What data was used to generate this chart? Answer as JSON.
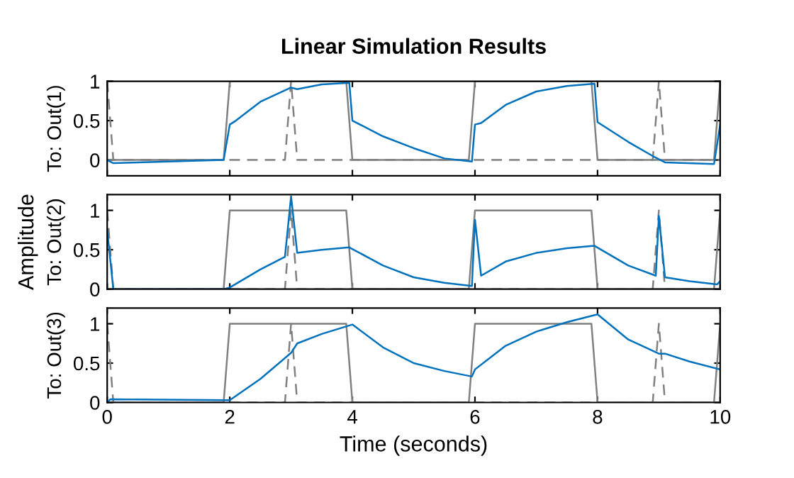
{
  "chart_data": [
    {
      "type": "line",
      "title": "Linear Simulation Results",
      "ylabel": "To: Out(1)",
      "xlim": [
        0,
        10
      ],
      "ylim": [
        -0.2,
        1
      ],
      "xticks": [
        0,
        2,
        4,
        6,
        8,
        10
      ],
      "yticks": [
        0,
        0.5,
        1
      ],
      "tick_labels": "y",
      "grid": false,
      "series": [
        {
          "color": "#808080",
          "line_style": "solid",
          "x": [
            0,
            1.9,
            2,
            3.9,
            4,
            5.9,
            6,
            7.9,
            8,
            9.9,
            10
          ],
          "values": [
            0,
            0,
            1,
            1,
            0,
            0,
            1,
            1,
            0,
            0,
            1
          ]
        },
        {
          "color": "#808080",
          "line_style": "dashed",
          "x": [
            0,
            0.1,
            2.9,
            3,
            3.1,
            8.9,
            9,
            9.1,
            10
          ],
          "values": [
            1,
            0,
            0,
            1,
            0,
            0,
            1,
            0,
            0
          ]
        },
        {
          "color": "#0072bd",
          "line_style": "solid",
          "x": [
            0,
            0.1,
            1.9,
            2,
            2.1,
            2.5,
            3,
            3.1,
            3.5,
            3.95,
            4,
            4.5,
            5,
            5.5,
            5.95,
            6,
            6.1,
            6.5,
            7,
            7.5,
            7.95,
            8,
            8.5,
            8.9,
            9.1,
            9.9,
            10
          ],
          "values": [
            0,
            -0.04,
            0,
            0.45,
            0.5,
            0.74,
            0.92,
            0.9,
            0.96,
            0.98,
            0.5,
            0.3,
            0.15,
            0.02,
            -0.02,
            0.45,
            0.47,
            0.7,
            0.87,
            0.94,
            0.97,
            0.48,
            0.23,
            0.05,
            -0.03,
            -0.05,
            0.45
          ]
        }
      ]
    },
    {
      "type": "line",
      "ylabel": "To: Out(2)",
      "annotations": [
        "Amplitude"
      ],
      "xlim": [
        0,
        10
      ],
      "ylim": [
        0,
        1.2
      ],
      "xticks": [
        0,
        2,
        4,
        6,
        8,
        10
      ],
      "yticks": [
        0,
        0.5,
        1
      ],
      "tick_labels": "y",
      "grid": false,
      "series": [
        {
          "color": "#808080",
          "line_style": "solid",
          "x": [
            0,
            1.9,
            2,
            3.9,
            4,
            5.9,
            6,
            7.9,
            8,
            9.9,
            10
          ],
          "values": [
            0,
            0,
            1,
            1,
            0,
            0,
            1,
            1,
            0,
            0,
            1
          ]
        },
        {
          "color": "#808080",
          "line_style": "dashed",
          "x": [
            0,
            0.1,
            2.9,
            3,
            3.1,
            8.9,
            9,
            9.1,
            10
          ],
          "values": [
            1,
            0,
            0,
            1,
            0,
            0,
            1,
            0,
            0
          ]
        },
        {
          "color": "#0072bd",
          "line_style": "solid",
          "x": [
            0,
            0.1,
            1.9,
            2,
            2.5,
            2.9,
            3,
            3.1,
            3.5,
            3.95,
            4.5,
            5,
            5.5,
            5.95,
            6,
            6.1,
            6.5,
            7,
            7.5,
            7.95,
            8.5,
            8.95,
            9,
            9.1,
            9.5,
            9.95,
            10
          ],
          "values": [
            0.75,
            0,
            0,
            0.02,
            0.25,
            0.41,
            1.18,
            0.46,
            0.5,
            0.53,
            0.3,
            0.15,
            0.08,
            0.04,
            0.88,
            0.17,
            0.35,
            0.46,
            0.52,
            0.55,
            0.3,
            0.17,
            0.93,
            0.15,
            0.1,
            0.06,
            0.1
          ]
        }
      ]
    },
    {
      "type": "line",
      "ylabel": "To: Out(3)",
      "xlabel": "Time (seconds)",
      "xlim": [
        0,
        10
      ],
      "ylim": [
        0,
        1.2
      ],
      "xticks": [
        0,
        2,
        4,
        6,
        8,
        10
      ],
      "yticks": [
        0,
        0.5,
        1
      ],
      "grid": false,
      "series": [
        {
          "color": "#808080",
          "line_style": "solid",
          "x": [
            0,
            1.9,
            2,
            3.9,
            4,
            5.9,
            6,
            7.9,
            8,
            9.9,
            10
          ],
          "values": [
            0,
            0,
            1,
            1,
            0,
            0,
            1,
            1,
            0,
            0,
            1
          ]
        },
        {
          "color": "#808080",
          "line_style": "dashed",
          "x": [
            0,
            0.1,
            2.9,
            3,
            3.1,
            8.9,
            9,
            9.1,
            10
          ],
          "values": [
            1,
            0,
            0,
            1,
            0,
            0,
            1,
            0,
            0
          ]
        },
        {
          "color": "#0072bd",
          "line_style": "solid",
          "x": [
            0,
            0.05,
            1.95,
            2,
            2.5,
            3,
            3.1,
            3.5,
            4,
            4.5,
            5,
            5.5,
            5.95,
            6,
            6.5,
            7,
            7.5,
            8,
            8.5,
            9,
            9.1,
            9.5,
            10
          ],
          "values": [
            0,
            0.04,
            0.03,
            0.03,
            0.3,
            0.63,
            0.75,
            0.87,
            0.99,
            0.7,
            0.5,
            0.4,
            0.33,
            0.42,
            0.72,
            0.9,
            1.02,
            1.12,
            0.8,
            0.62,
            0.62,
            0.52,
            0.42
          ]
        }
      ]
    }
  ]
}
